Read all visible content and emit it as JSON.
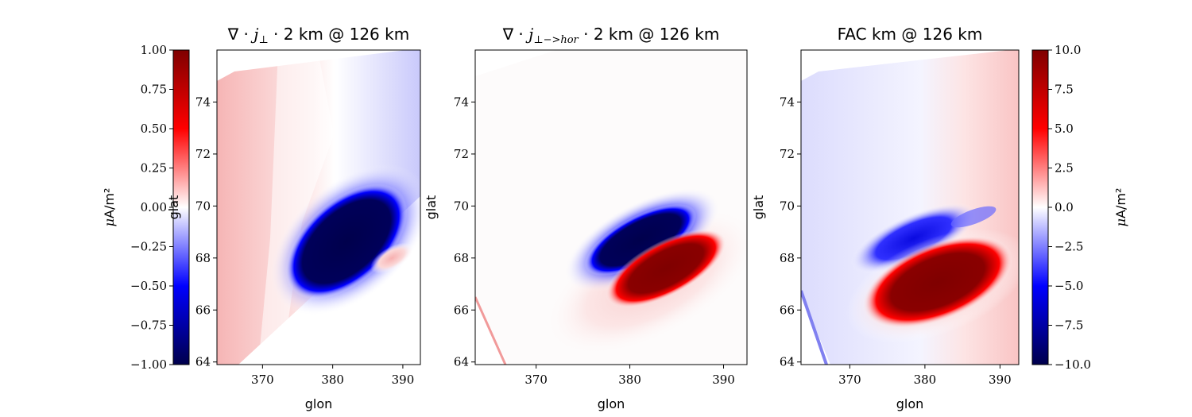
{
  "colors": {
    "map_negative": "#00004c",
    "map_blue": "#0000ff",
    "map_white": "#ffffff",
    "map_red": "#ff0000",
    "map_positive": "#7f0000"
  },
  "chart_data": [
    {
      "type": "heatmap",
      "panel": "left",
      "title": "∇ · j⊥ · 2 km @ 126 km",
      "title_parts": {
        "operator": "∇ · ",
        "vector": "j",
        "subscript": "⊥",
        "rest": " · 2 km @ 126 km"
      },
      "xlabel": "glon",
      "ylabel": "glat",
      "xticks": [
        "370",
        "380",
        "390"
      ],
      "yticks": [
        "64",
        "66",
        "68",
        "70",
        "72",
        "74"
      ],
      "xlim": [
        363.5,
        392.5
      ],
      "ylim": [
        63.9,
        76.0
      ],
      "colorbar": {
        "side": "left",
        "label": "μA/m²",
        "range": [
          -1.0,
          1.0
        ],
        "ticks": [
          "−1.00",
          "−0.75",
          "−0.50",
          "−0.25",
          "0.00",
          "0.25",
          "0.50",
          "0.75",
          "1.00"
        ]
      },
      "features": [
        {
          "kind": "negative-blob",
          "center": [
            381.5,
            68.7
          ],
          "value": -1.0
        },
        {
          "kind": "positive-blob",
          "center": [
            387.0,
            68.1
          ],
          "value": 0.25
        },
        {
          "kind": "background-gradient",
          "west_value": 0.35,
          "east_value": -0.3
        }
      ]
    },
    {
      "type": "heatmap",
      "panel": "middle",
      "title": "∇ · j⊥−>hor · 2 km @ 126 km",
      "title_parts": {
        "operator": "∇ · ",
        "vector": "j",
        "subscript": "⊥−>hor",
        "rest": " · 2 km @ 126 km"
      },
      "xlabel": "glon",
      "ylabel": "glat",
      "xticks": [
        "370",
        "380",
        "390"
      ],
      "yticks": [
        "64",
        "66",
        "68",
        "70",
        "72",
        "74"
      ],
      "xlim": [
        363.5,
        392.5
      ],
      "ylim": [
        63.9,
        76.0
      ],
      "features": [
        {
          "kind": "negative-blob",
          "center": [
            382.0,
            68.9
          ],
          "value": -1.0
        },
        {
          "kind": "positive-blob",
          "center": [
            384.0,
            67.8
          ],
          "value": 1.0
        }
      ]
    },
    {
      "type": "heatmap",
      "panel": "right",
      "title": "FAC km @ 126 km",
      "xlabel": "glon",
      "ylabel": "glat",
      "xticks": [
        "370",
        "380",
        "390"
      ],
      "yticks": [
        "64",
        "66",
        "68",
        "70",
        "72",
        "74"
      ],
      "xlim": [
        363.5,
        392.5
      ],
      "ylim": [
        63.9,
        76.0
      ],
      "colorbar": {
        "side": "right",
        "label": "μA/m²",
        "range": [
          -10.0,
          10.0
        ],
        "ticks": [
          "−10.0",
          "−7.5",
          "−5.0",
          "−2.5",
          "0.0",
          "2.5",
          "5.0",
          "7.5",
          "10.0"
        ]
      },
      "features": [
        {
          "kind": "negative-band",
          "center": [
            383.0,
            69.0
          ],
          "value": -5.0
        },
        {
          "kind": "positive-blob",
          "center": [
            382.5,
            67.3
          ],
          "value": 10.0
        },
        {
          "kind": "background-gradient",
          "west_value": -1.5,
          "east_value": 1.5
        }
      ]
    }
  ]
}
